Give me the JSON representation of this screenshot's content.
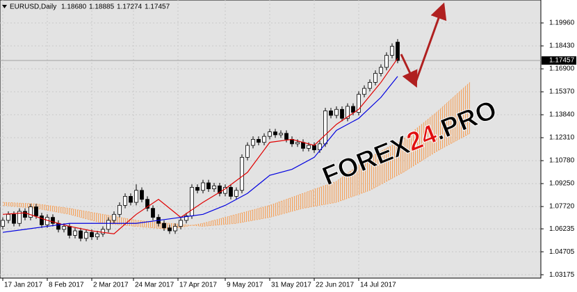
{
  "chart_data": {
    "type": "candlestick",
    "symbol": "EURUSD,Daily",
    "header_ohlc": [
      "1.18680",
      "1.18885",
      "1.17274",
      "1.17457"
    ],
    "x": [
      0,
      2,
      4,
      6,
      8,
      10,
      12,
      14,
      16,
      18,
      20,
      22,
      24,
      26,
      28,
      30,
      32,
      34,
      36,
      38,
      40,
      42,
      44,
      46,
      48,
      50,
      52,
      54,
      56,
      58,
      60,
      62,
      64,
      66,
      68,
      70,
      72,
      74,
      76,
      78,
      80,
      82,
      84,
      86,
      88,
      90,
      92,
      94,
      96,
      98,
      100,
      102,
      104,
      106,
      108,
      110,
      112,
      114,
      116,
      118,
      120,
      122,
      124,
      126,
      128,
      130,
      132,
      134,
      136,
      138,
      140,
      142
    ],
    "ohlc": [
      [
        1.064,
        1.07,
        1.062,
        1.068
      ],
      [
        1.068,
        1.074,
        1.066,
        1.072
      ],
      [
        1.072,
        1.074,
        1.064,
        1.066
      ],
      [
        1.066,
        1.076,
        1.064,
        1.074
      ],
      [
        1.074,
        1.076,
        1.068,
        1.07
      ],
      [
        1.07,
        1.079,
        1.068,
        1.077
      ],
      [
        1.077,
        1.079,
        1.069,
        1.071
      ],
      [
        1.071,
        1.073,
        1.063,
        1.065
      ],
      [
        1.065,
        1.072,
        1.063,
        1.07
      ],
      [
        1.07,
        1.072,
        1.064,
        1.066
      ],
      [
        1.066,
        1.068,
        1.06,
        1.062
      ],
      [
        1.062,
        1.066,
        1.06,
        1.064
      ],
      [
        1.064,
        1.066,
        1.056,
        1.058
      ],
      [
        1.058,
        1.063,
        1.056,
        1.061
      ],
      [
        1.061,
        1.063,
        1.054,
        1.056
      ],
      [
        1.056,
        1.062,
        1.054,
        1.06
      ],
      [
        1.06,
        1.062,
        1.055,
        1.057
      ],
      [
        1.057,
        1.061,
        1.055,
        1.059
      ],
      [
        1.059,
        1.064,
        1.057,
        1.062
      ],
      [
        1.062,
        1.07,
        1.06,
        1.068
      ],
      [
        1.068,
        1.074,
        1.066,
        1.072
      ],
      [
        1.072,
        1.08,
        1.07,
        1.078
      ],
      [
        1.078,
        1.086,
        1.076,
        1.084
      ],
      [
        1.084,
        1.086,
        1.078,
        1.08
      ],
      [
        1.08,
        1.092,
        1.078,
        1.088
      ],
      [
        1.088,
        1.09,
        1.08,
        1.082
      ],
      [
        1.082,
        1.084,
        1.074,
        1.076
      ],
      [
        1.076,
        1.078,
        1.068,
        1.07
      ],
      [
        1.07,
        1.072,
        1.064,
        1.066
      ],
      [
        1.066,
        1.068,
        1.061,
        1.063
      ],
      [
        1.063,
        1.065,
        1.059,
        1.061
      ],
      [
        1.061,
        1.066,
        1.059,
        1.064
      ],
      [
        1.064,
        1.07,
        1.062,
        1.068
      ],
      [
        1.068,
        1.073,
        1.066,
        1.071
      ],
      [
        1.071,
        1.092,
        1.069,
        1.09
      ],
      [
        1.09,
        1.092,
        1.086,
        1.088
      ],
      [
        1.088,
        1.095,
        1.086,
        1.093
      ],
      [
        1.093,
        1.095,
        1.087,
        1.089
      ],
      [
        1.089,
        1.093,
        1.087,
        1.091
      ],
      [
        1.091,
        1.093,
        1.084,
        1.086
      ],
      [
        1.086,
        1.092,
        1.084,
        1.09
      ],
      [
        1.09,
        1.092,
        1.082,
        1.084
      ],
      [
        1.084,
        1.09,
        1.082,
        1.088
      ],
      [
        1.088,
        1.112,
        1.086,
        1.11
      ],
      [
        1.11,
        1.12,
        1.108,
        1.118
      ],
      [
        1.118,
        1.124,
        1.116,
        1.122
      ],
      [
        1.122,
        1.124,
        1.118,
        1.12
      ],
      [
        1.12,
        1.126,
        1.118,
        1.124
      ],
      [
        1.124,
        1.129,
        1.122,
        1.127
      ],
      [
        1.127,
        1.129,
        1.123,
        1.125
      ],
      [
        1.125,
        1.128,
        1.123,
        1.126
      ],
      [
        1.126,
        1.128,
        1.12,
        1.122
      ],
      [
        1.122,
        1.124,
        1.117,
        1.119
      ],
      [
        1.119,
        1.122,
        1.117,
        1.12
      ],
      [
        1.12,
        1.122,
        1.114,
        1.116
      ],
      [
        1.116,
        1.12,
        1.114,
        1.118
      ],
      [
        1.118,
        1.12,
        1.113,
        1.115
      ],
      [
        1.115,
        1.121,
        1.113,
        1.119
      ],
      [
        1.119,
        1.143,
        1.117,
        1.141
      ],
      [
        1.141,
        1.143,
        1.136,
        1.138
      ],
      [
        1.138,
        1.144,
        1.136,
        1.142
      ],
      [
        1.142,
        1.144,
        1.134,
        1.136
      ],
      [
        1.136,
        1.146,
        1.134,
        1.144
      ],
      [
        1.144,
        1.146,
        1.138,
        1.14
      ],
      [
        1.14,
        1.154,
        1.138,
        1.152
      ],
      [
        1.152,
        1.158,
        1.15,
        1.156
      ],
      [
        1.156,
        1.162,
        1.154,
        1.16
      ],
      [
        1.16,
        1.168,
        1.158,
        1.166
      ],
      [
        1.166,
        1.172,
        1.164,
        1.17
      ],
      [
        1.17,
        1.18,
        1.168,
        1.178
      ],
      [
        1.178,
        1.186,
        1.176,
        1.184
      ],
      [
        1.1868,
        1.18885,
        1.17274,
        1.17457
      ]
    ],
    "lines": [
      {
        "color": "#e00000",
        "x": [
          0,
          8,
          16,
          24,
          32,
          40,
          48,
          56,
          64,
          72,
          80,
          88,
          96,
          104,
          112,
          120,
          128,
          136,
          142
        ],
        "values": [
          1.072,
          1.073,
          1.068,
          1.064,
          1.061,
          1.059,
          1.072,
          1.082,
          1.07,
          1.08,
          1.089,
          1.1,
          1.12,
          1.122,
          1.118,
          1.132,
          1.142,
          1.16,
          1.176
        ]
      },
      {
        "color": "#0000e0",
        "x": [
          0,
          8,
          16,
          24,
          32,
          40,
          48,
          56,
          64,
          72,
          80,
          88,
          96,
          104,
          112,
          120,
          128,
          136,
          142
        ],
        "values": [
          1.06,
          1.062,
          1.064,
          1.066,
          1.066,
          1.066,
          1.066,
          1.068,
          1.07,
          1.072,
          1.078,
          1.086,
          1.098,
          1.102,
          1.11,
          1.128,
          1.136,
          1.15,
          1.164
        ]
      }
    ],
    "cloud": {
      "color": "#f4a460",
      "x": [
        0,
        12,
        24,
        36,
        48,
        60,
        72,
        84,
        96,
        108,
        120,
        132,
        144,
        156,
        168
      ],
      "span_a": [
        1.078,
        1.076,
        1.072,
        1.066,
        1.064,
        1.062,
        1.066,
        1.072,
        1.078,
        1.086,
        1.094,
        1.11,
        1.122,
        1.14,
        1.16
      ],
      "span_b": [
        1.08,
        1.079,
        1.076,
        1.072,
        1.068,
        1.066,
        1.064,
        1.066,
        1.07,
        1.076,
        1.08,
        1.088,
        1.1,
        1.114,
        1.126
      ]
    },
    "price_marker": {
      "value": 1.17457,
      "label": "1.17457"
    },
    "xlim": [
      -1,
      193.5
    ],
    "ylim": [
      1.0295,
      1.2149
    ],
    "yticks": [
      {
        "value": 1.1996,
        "label": "1.19960"
      },
      {
        "value": 1.1843,
        "label": "1.18430"
      },
      {
        "value": 1.169,
        "label": "1.16900"
      },
      {
        "value": 1.1537,
        "label": "1.15370"
      },
      {
        "value": 1.1384,
        "label": "1.13840"
      },
      {
        "value": 1.1231,
        "label": "1.12310"
      },
      {
        "value": 1.1078,
        "label": "1.10780"
      },
      {
        "value": 1.0925,
        "label": "1.09250"
      },
      {
        "value": 1.0772,
        "label": "1.07720"
      },
      {
        "value": 1.06235,
        "label": "1.06235"
      },
      {
        "value": 1.04705,
        "label": "1.04705"
      },
      {
        "value": 1.03175,
        "label": "1.03175"
      }
    ],
    "xticks": [
      {
        "value": 0,
        "label": "17 Jan 2017"
      },
      {
        "value": 16,
        "label": "8 Feb 2017"
      },
      {
        "value": 32,
        "label": "2 Mar 2017"
      },
      {
        "value": 47,
        "label": "24 Mar 2017"
      },
      {
        "value": 63,
        "label": "17 Apr 2017"
      },
      {
        "value": 80,
        "label": "9 May 2017"
      },
      {
        "value": 96,
        "label": "31 May 2017"
      },
      {
        "value": 112,
        "label": "22 Jun 2017"
      },
      {
        "value": 128,
        "label": "14 Jul 2017"
      }
    ],
    "grid": true,
    "watermark": [
      "FOREX",
      "24",
      ".PRO"
    ]
  }
}
